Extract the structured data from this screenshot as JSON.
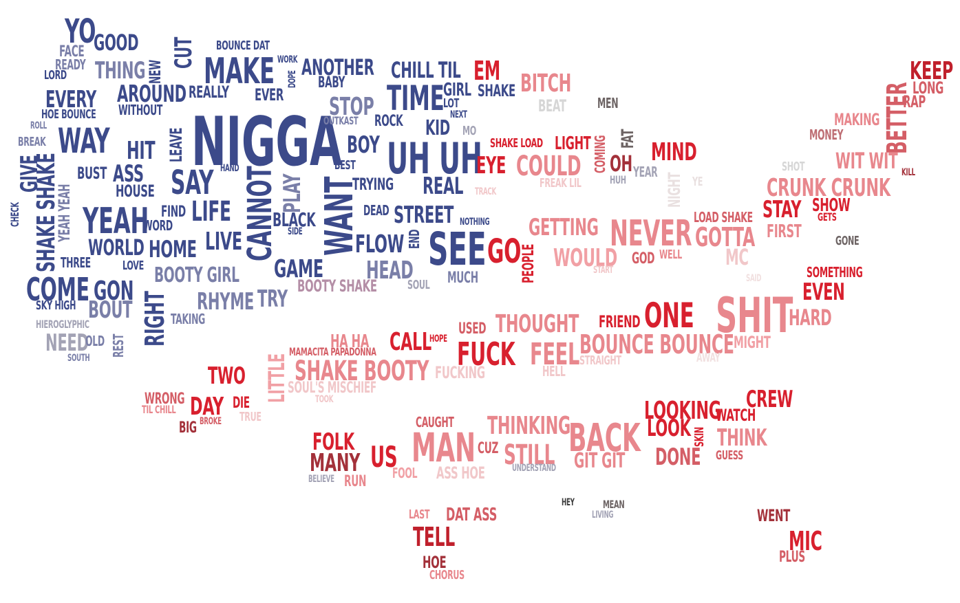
{
  "colors": {
    "navy": "#3c4a8a",
    "slate": "#7a7fa8",
    "gray": "#a3a3b5",
    "pink": "#e8878d",
    "rose": "#d45e66",
    "red": "#d8202e",
    "maroon": "#a3313a",
    "darkred": "#c0202c",
    "light": "#f1c7c9",
    "olive": "#6d6464"
  },
  "words": {
    "nigga": "NIGGA",
    "yo": "YO",
    "good": "GOOD",
    "face": "FACE",
    "ready": "READY",
    "lord": "LORD",
    "thing": "THING",
    "new": "NEW",
    "cut": "CUT",
    "bounce_dat": "BOUNCE DAT",
    "make": "MAKE",
    "work": "WORK",
    "dope": "DOPE",
    "another": "ANOTHER",
    "baby": "BABY",
    "chill_til": "CHILL TIL",
    "em": "EM",
    "every": "EVERY",
    "around": "AROUND",
    "really": "REALLY",
    "ever": "EVER",
    "stop": "STOP",
    "time": "TIME",
    "girl": "GIRL",
    "shake1": "SHAKE",
    "lot": "LOT",
    "next": "NEXT",
    "hoe_bounce": "HOE BOUNCE",
    "without": "WITHOUT",
    "outkast": "OUTKAST",
    "rock": "ROCK",
    "kid": "KID",
    "mo": "MO",
    "roll": "ROLL",
    "way": "WAY",
    "break": "BREAK",
    "hit": "HIT",
    "leave": "LEAVE",
    "boy": "BOY",
    "uh_uh": "UH UH",
    "give": "GIVE",
    "hand": "HAND",
    "best": "BEST",
    "bust": "BUST",
    "ass": "ASS",
    "say": "SAY",
    "cannot": "CANNOT",
    "play": "PLAY",
    "want": "WANT",
    "trying": "TRYING",
    "real": "REAL",
    "house": "HOUSE",
    "shake_shake": "SHAKE SHAKE",
    "yeah_yeah": "YEAH YEAH",
    "check": "CHECK",
    "yeah": "YEAH",
    "find": "FIND",
    "life": "LIFE",
    "word": "WORD",
    "black": "BLACK",
    "side": "SIDE",
    "dead": "DEAD",
    "street": "STREET",
    "nothing": "NOTHING",
    "world": "WORLD",
    "home": "HOME",
    "live": "LIVE",
    "flow": "FLOW",
    "end": "END",
    "see": "SEE",
    "go": "GO",
    "three": "THREE",
    "love": "LOVE",
    "game": "GAME",
    "head": "HEAD",
    "booty_girl": "BOOTY GIRL",
    "come": "COME",
    "gon": "GON",
    "much": "MUCH",
    "booty_shake": "BOOTY SHAKE",
    "soul": "SOUL",
    "sky_high": "SKY HIGH",
    "bout": "BOUT",
    "right": "RIGHT",
    "rhyme": "RHYME",
    "try": "TRY",
    "taking": "TAKING",
    "hieroglyphic": "HIEROGLYPHIC",
    "need": "NEED",
    "old": "OLD",
    "rest": "REST",
    "south": "SOUTH",
    "bitch": "BITCH",
    "beat": "BEAT",
    "men": "MEN",
    "keep": "KEEP",
    "long": "LONG",
    "rap": "RAP",
    "better": "BETTER",
    "making": "MAKING",
    "money": "MONEY",
    "fat": "FAT",
    "shake_load": "SHAKE LOAD",
    "light": "LIGHT",
    "coming": "COMING",
    "mind": "MIND",
    "eye": "EYE",
    "could": "COULD",
    "oh": "OH",
    "year": "YEAR",
    "huh": "HUH",
    "wit_wit": "WIT WIT",
    "kill": "KILL",
    "shot": "SHOT",
    "track": "TRACK",
    "freak_lil": "FREAK LIL",
    "night": "NIGHT",
    "ye": "YE",
    "crunk_crunk": "CRUNK CRUNK",
    "stay": "STAY",
    "show": "SHOW",
    "gets": "GETS",
    "load_shake": "LOAD SHAKE",
    "first": "FIRST",
    "getting": "GETTING",
    "never": "NEVER",
    "gotta": "GOTTA",
    "gone": "GONE",
    "people": "PEOPLE",
    "would": "WOULD",
    "god": "GOD",
    "well": "WELL",
    "mc": "MC",
    "start": "START",
    "something": "SOMETHING",
    "said": "SAID",
    "even": "EVEN",
    "one": "ONE",
    "shit": "SHIT",
    "hard": "HARD",
    "friend": "FRIEND",
    "thought": "THOUGHT",
    "used": "USED",
    "ha_ha": "HA HA",
    "call": "CALL",
    "hope": "HOPE",
    "fuck": "FUCK",
    "feel": "FEEL",
    "bounce_bounce": "BOUNCE BOUNCE",
    "might": "MIGHT",
    "straight": "STRAIGHT",
    "away": "AWAY",
    "little": "LITTLE",
    "mamacita_papadonna": "MAMACITA PAPADONNA",
    "shake_booty": "SHAKE BOOTY",
    "fucking": "FUCKING",
    "hell": "HELL",
    "two": "TWO",
    "souls_mischief": "SOUL'S MISCHIEF",
    "took": "TOOK",
    "wrong": "WRONG",
    "til_chill": "TIL CHILL",
    "day": "DAY",
    "die": "DIE",
    "true": "TRUE",
    "broke": "BROKE",
    "big": "BIG",
    "crew": "CREW",
    "looking": "LOOKING",
    "watch": "WATCH",
    "look": "LOOK",
    "skin": "SKIN",
    "think": "THINK",
    "caught": "CAUGHT",
    "thinking": "THINKING",
    "back": "BACK",
    "folk": "FOLK",
    "man": "MAN",
    "cuz": "CUZ",
    "still": "STILL",
    "done": "DONE",
    "guess": "GUESS",
    "many": "MANY",
    "us": "US",
    "git_git": "GIT GIT",
    "understand": "UNDERSTAND",
    "fool": "FOOL",
    "ass_hoe": "ASS HOE",
    "believe": "BELIEVE",
    "run": "RUN",
    "hey": "HEY",
    "mean": "MEAN",
    "living": "LIVING",
    "last": "LAST",
    "dat_ass": "DAT ASS",
    "went": "WENT",
    "tell": "TELL",
    "mic": "MIC",
    "plus": "PLUS",
    "hoe": "HOE",
    "chorus": "CHORUS"
  }
}
